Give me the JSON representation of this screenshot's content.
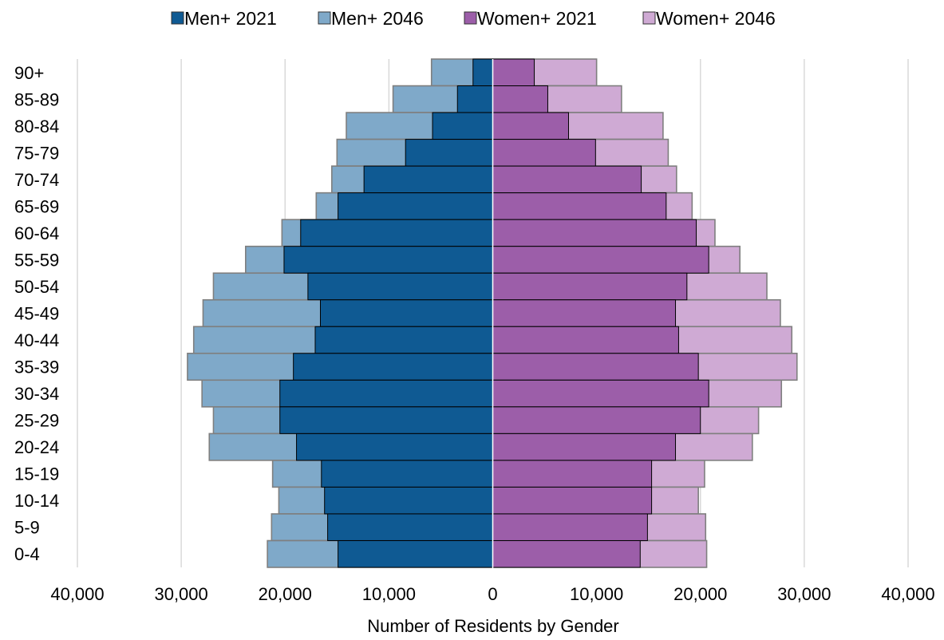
{
  "chart_data": {
    "type": "bar",
    "orientation": "horizontal-population-pyramid",
    "title": "",
    "xlabel": "Number of Residents by Gender",
    "ylabel": "",
    "xlim": [
      -40000,
      40000
    ],
    "x_ticks": [
      -40000,
      -30000,
      -20000,
      -10000,
      0,
      10000,
      20000,
      30000,
      40000
    ],
    "x_tick_labels": [
      "40,000",
      "30,000",
      "20,000",
      "10,000",
      "0",
      "10,000",
      "20,000",
      "30,000",
      "40,000"
    ],
    "grid": "vertical",
    "legend_position": "top",
    "categories": [
      "90+",
      "85-89",
      "80-84",
      "75-79",
      "70-74",
      "65-69",
      "60-64",
      "55-59",
      "50-54",
      "45-49",
      "40-44",
      "35-39",
      "30-34",
      "25-29",
      "20-24",
      "15-19",
      "10-14",
      "5-9",
      "0-4"
    ],
    "series": [
      {
        "name": "Men+ 2021",
        "side": "left",
        "color": "#0f5a93",
        "values": [
          1900,
          3400,
          5800,
          8400,
          12400,
          14900,
          18500,
          20100,
          17800,
          16600,
          17100,
          19200,
          20500,
          20500,
          18900,
          16500,
          16200,
          15900,
          14900
        ]
      },
      {
        "name": "Men+ 2046",
        "side": "left",
        "color": "#7fa9c9",
        "values": [
          5900,
          9600,
          14100,
          15000,
          15500,
          17000,
          20300,
          23800,
          26900,
          27900,
          28800,
          29400,
          28000,
          26900,
          27300,
          21200,
          20600,
          21300,
          21700
        ]
      },
      {
        "name": "Women+ 2021",
        "side": "right",
        "color": "#9c5ea9",
        "values": [
          4000,
          5300,
          7300,
          9900,
          14300,
          16700,
          19600,
          20800,
          18700,
          17600,
          17900,
          19800,
          20800,
          20000,
          17600,
          15300,
          15300,
          14900,
          14200
        ]
      },
      {
        "name": "Women+ 2046",
        "side": "right",
        "color": "#cfaad4",
        "values": [
          10000,
          12400,
          16400,
          16900,
          17700,
          19200,
          21400,
          23800,
          26400,
          27700,
          28800,
          29300,
          27800,
          25600,
          25000,
          20400,
          19800,
          20500,
          20600
        ]
      }
    ]
  }
}
